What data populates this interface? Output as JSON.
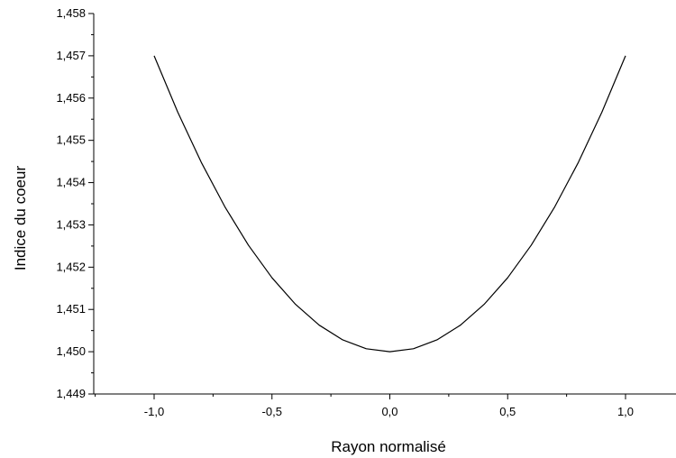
{
  "chart_data": {
    "type": "line",
    "xlabel": "Rayon normalisé",
    "ylabel": "Indice du coeur",
    "xlim": [
      -1.25,
      1.2
    ],
    "ylim": [
      1.449,
      1.458
    ],
    "x_ticks": [
      -1.0,
      -0.5,
      0.0,
      0.5,
      1.0
    ],
    "x_tick_labels": [
      "-1,0",
      "-0,5",
      "0,0",
      "0,5",
      "1,0"
    ],
    "y_ticks": [
      1.449,
      1.45,
      1.451,
      1.452,
      1.453,
      1.454,
      1.455,
      1.456,
      1.457,
      1.458
    ],
    "y_tick_labels": [
      "1,449",
      "1,450",
      "1,451",
      "1,452",
      "1,453",
      "1,454",
      "1,455",
      "1,456",
      "1,457",
      "1,458"
    ],
    "grid": false,
    "legend": "none",
    "line_color": "#000000",
    "series": [
      {
        "x": [
          -1.0,
          -0.9,
          -0.8,
          -0.7,
          -0.6,
          -0.5,
          -0.4,
          -0.3,
          -0.2,
          -0.1,
          0.0,
          0.1,
          0.2,
          0.3,
          0.4,
          0.5,
          0.6,
          0.7,
          0.8,
          0.9,
          1.0
        ],
        "y": [
          1.457,
          1.45567,
          1.45448,
          1.45343,
          1.45252,
          1.45175,
          1.45112,
          1.45063,
          1.45028,
          1.45007,
          1.45,
          1.45007,
          1.45028,
          1.45063,
          1.45112,
          1.45175,
          1.45252,
          1.45343,
          1.45448,
          1.45567,
          1.457
        ]
      }
    ]
  }
}
